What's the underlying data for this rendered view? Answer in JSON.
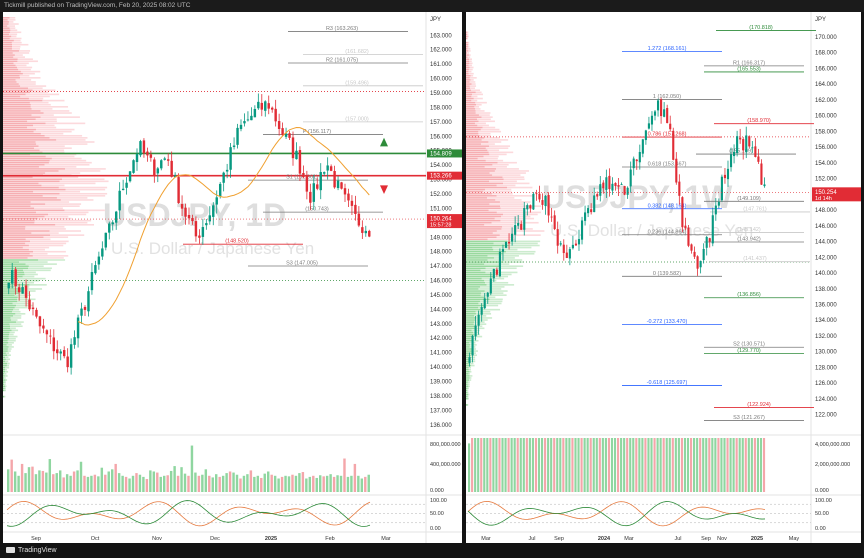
{
  "header": {
    "publish_text": "Tickmill published on TradingView.com, Feb 20, 2025 08:02 UTC"
  },
  "footer": {
    "brand": "TradingView"
  },
  "colors": {
    "up": "#089981",
    "down": "#e12c35",
    "sma": "#f0a030",
    "level_green": "#2e8b3a",
    "level_red": "#e12c35"
  },
  "chart_data": [
    {
      "type": "candlestick",
      "symbol_watermark": "USDJPY, 1D",
      "description_watermark": "U.S. Dollar / Japanese Yen",
      "currency": "JPY",
      "ylim": [
        135.5,
        164.2
      ],
      "y_ticks": [
        136.0,
        137.0,
        138.0,
        139.0,
        140.0,
        141.0,
        142.0,
        143.0,
        144.0,
        145.0,
        146.0,
        147.0,
        148.0,
        149.0,
        150.0,
        151.0,
        152.0,
        153.0,
        154.0,
        155.0,
        156.0,
        157.0,
        158.0,
        159.0,
        160.0,
        161.0,
        162.0,
        163.0
      ],
      "x_ticks": [
        "Sep",
        "Oct",
        "Nov",
        "Dec",
        "2025",
        "Feb",
        "Mar"
      ],
      "candles": [],
      "last_price": {
        "value": "150.264",
        "countdown": "15:57:28",
        "y": 150.26
      },
      "pivot_levels": [
        {
          "label": "R3 (163.263)",
          "y": 163.26,
          "color": "#7a7a7a"
        },
        {
          "label": "(161.682)",
          "y": 161.68,
          "color": "#c8c8c8"
        },
        {
          "label": "R2 (161.075)",
          "y": 161.08,
          "color": "#7a7a7a"
        },
        {
          "label": "(159.496)",
          "y": 159.5,
          "color": "#c8c8c8"
        },
        {
          "label": "P (156.117)",
          "y": 156.12,
          "color": "#7a7a7a"
        },
        {
          "label": "(157.000)",
          "y": 157.0,
          "color": "#c8c8c8"
        },
        {
          "label": "S1 (152.961)",
          "y": 152.96,
          "color": "#7a7a7a"
        },
        {
          "label": "(150.743)",
          "y": 150.74,
          "color": "#7a7a7a"
        },
        {
          "label": "(148.520)",
          "y": 148.52,
          "color": "#e12c35"
        },
        {
          "label": "S3 (147.005)",
          "y": 147.01,
          "color": "#7a7a7a"
        }
      ],
      "horizontal_lines": [
        {
          "label": "154.809",
          "y": 154.81,
          "color": "#2e8b3a",
          "style": "solid"
        },
        {
          "label": "153.266",
          "y": 153.27,
          "color": "#e12c35",
          "style": "solid"
        },
        {
          "y": 159.1,
          "color": "#e12c35",
          "style": "dotted"
        },
        {
          "y": 146.0,
          "color": "#2e8b3a",
          "style": "dotted"
        }
      ],
      "volume_ticks": [
        "800,000.000",
        "400,000.000",
        "0.000"
      ],
      "volume_max": 900000,
      "volumes": [
        420,
        600,
        380,
        300,
        520,
        350,
        460,
        470,
        330,
        400,
        390,
        360,
        610,
        330,
        350,
        400,
        270,
        330,
        300,
        380,
        400,
        560,
        300,
        280,
        300,
        320,
        290,
        450,
        320,
        380,
        420,
        520,
        350,
        300,
        280,
        250,
        300,
        350,
        320,
        280,
        240,
        400,
        380,
        360,
        280,
        300,
        310,
        390,
        480,
        300,
        460,
        340,
        300,
        860,
        360,
        300,
        320,
        420,
        300,
        270,
        330,
        280,
        300,
        350,
        380,
        360,
        320,
        250,
        300,
        330,
        400,
        280,
        300,
        260,
        340,
        380,
        320,
        300,
        250,
        280,
        300,
        290,
        320,
        300,
        350,
        370,
        250,
        280,
        300,
        260,
        310,
        290,
        300,
        330,
        280,
        310,
        300,
        620,
        280,
        300,
        520,
        300,
        250,
        280,
        320
      ],
      "stoch_ticks": [
        "100.00",
        "50.00",
        "0.00"
      ]
    },
    {
      "type": "candlestick",
      "symbol_watermark": "USDJPY, 1W",
      "description_watermark": "U.S. Dollar / Japanese Yen",
      "currency": "JPY",
      "ylim": [
        119.8,
        172.4
      ],
      "y_ticks": [
        120.0,
        122.0,
        124.0,
        126.0,
        128.0,
        130.0,
        132.0,
        134.0,
        136.0,
        138.0,
        140.0,
        142.0,
        144.0,
        146.0,
        148.0,
        150.0,
        152.0,
        154.0,
        156.0,
        158.0,
        160.0,
        162.0,
        164.0,
        166.0,
        168.0,
        170.0
      ],
      "x_ticks": [
        "Mar",
        "Jul",
        "Sep",
        "2024",
        "Mar",
        "Jul",
        "Sep",
        "Nov",
        "2025",
        "May"
      ],
      "candles": [],
      "last_price": {
        "value": "150.254",
        "countdown": "1d 14h",
        "y": 150.25
      },
      "fib_levels": [
        {
          "label": "1.272 (168.161)",
          "y": 168.16,
          "color": "#2962ff"
        },
        {
          "label": "1 (162.050)",
          "y": 162.05,
          "color": "#7a7a7a"
        },
        {
          "label": "0.786 (157.268)",
          "y": 157.27,
          "color": "#e12c35"
        },
        {
          "label": "0.618 (153.467)",
          "y": 153.47,
          "color": "#7a7a7a"
        },
        {
          "label": "0.382 (148.164)",
          "y": 148.16,
          "color": "#2962ff"
        },
        {
          "label": "0.236 (144.864)",
          "y": 144.86,
          "color": "#7a7a7a"
        },
        {
          "label": "0 (139.582)",
          "y": 139.58,
          "color": "#7a7a7a"
        },
        {
          "label": "-0.272 (133.470)",
          "y": 133.47,
          "color": "#2962ff"
        },
        {
          "label": "-0.618 (125.697)",
          "y": 125.7,
          "color": "#2962ff"
        }
      ],
      "pivot_levels": [
        {
          "label": "(170.818)",
          "y": 170.82,
          "color": "#2e8b3a"
        },
        {
          "label": "R1 (166.317)",
          "y": 166.32,
          "color": "#7a7a7a"
        },
        {
          "label": "(165.553)",
          "y": 165.55,
          "color": "#2e8b3a"
        },
        {
          "label": "(158.970)",
          "y": 158.97,
          "color": "#e12c35"
        },
        {
          "label": "(155.109)",
          "y": 155.11,
          "color": "#7a7a7a"
        },
        {
          "label": "(149.109)",
          "y": 149.11,
          "color": "#7a7a7a"
        },
        {
          "label": "(147.761)",
          "y": 147.76,
          "color": "#c8c8c8"
        },
        {
          "label": "(145.142)",
          "y": 145.14,
          "color": "#c8c8c8"
        },
        {
          "label": "(143.942)",
          "y": 143.94,
          "color": "#7a7a7a"
        },
        {
          "label": "(141.437)",
          "y": 141.44,
          "color": "#c8c8c8"
        },
        {
          "label": "(136.856)",
          "y": 136.86,
          "color": "#2e8b3a"
        },
        {
          "label": "S2 (130.571)",
          "y": 130.57,
          "color": "#7a7a7a"
        },
        {
          "label": "(129.770)",
          "y": 129.77,
          "color": "#2e8b3a"
        },
        {
          "label": "(122.924)",
          "y": 122.92,
          "color": "#e12c35"
        },
        {
          "label": "S3 (121.267)",
          "y": 121.27,
          "color": "#7a7a7a"
        }
      ],
      "horizontal_lines": [
        {
          "y": 157.3,
          "color": "#e12c35",
          "style": "dotted"
        },
        {
          "y": 141.4,
          "color": "#2e8b3a",
          "style": "dotted"
        }
      ],
      "volume_ticks": [
        "4,000,000.000",
        "2,000,000.000",
        "0.000"
      ],
      "volume_max": 4600000,
      "volumes": [
        900,
        1300,
        1100,
        1400,
        1200,
        1500,
        1600,
        1400,
        1700,
        1300,
        1500,
        1800,
        1400,
        1600,
        1500,
        1300,
        1700,
        1900,
        1600,
        1400,
        1500,
        1800,
        2000,
        1700,
        1500,
        1600,
        1400,
        1900,
        2100,
        1800,
        1600,
        1500,
        1700,
        2000,
        1800,
        1600,
        1400,
        1500,
        1900,
        2200,
        2400,
        2000,
        1800,
        1700,
        1600,
        1900,
        2000,
        2300,
        2600,
        2100,
        1900,
        1700,
        2000,
        2300,
        2500,
        2800,
        3000,
        2600,
        2300,
        2000,
        1900,
        1700,
        2100,
        2400,
        2700,
        2200,
        2000,
        1800,
        2300,
        2600,
        2400,
        2100,
        1900,
        2200,
        2000,
        1800,
        2100,
        2300,
        2000,
        1700,
        1900,
        2100,
        1800,
        1600,
        1900,
        1800,
        2000,
        1700,
        1900,
        2200,
        1800,
        1500,
        1700,
        1900,
        2100,
        1800,
        1600,
        1400
      ],
      "stoch_ticks": [
        "100.00",
        "50.00",
        "0.00"
      ]
    }
  ]
}
